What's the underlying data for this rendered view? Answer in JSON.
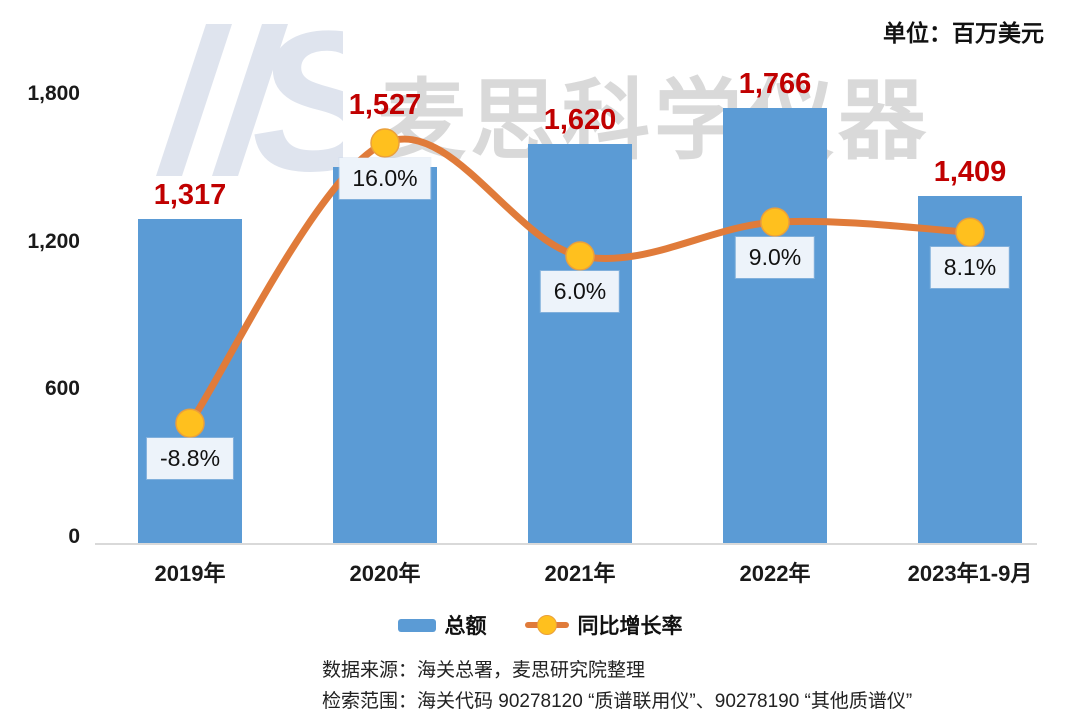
{
  "header": {
    "unit": "单位：百万美元"
  },
  "watermark": {
    "logo": "MS",
    "text": "麦思科学仪器"
  },
  "chart_data": {
    "type": "bar",
    "categories": [
      "2019年",
      "2020年",
      "2021年",
      "2022年",
      "2023年1-9月"
    ],
    "series": [
      {
        "name": "总额",
        "type": "bar",
        "values": [
          1317,
          1527,
          1620,
          1766,
          1409
        ],
        "labels": [
          "1,317",
          "1,527",
          "1,620",
          "1,766",
          "1,409"
        ],
        "color": "#5b9bd5"
      },
      {
        "name": "同比增长率",
        "type": "line",
        "values": [
          -8.8,
          16.0,
          6.0,
          9.0,
          8.1
        ],
        "labels": [
          "-8.8%",
          "16.0%",
          "6.0%",
          "9.0%",
          "8.1%"
        ],
        "line_color": "#e07b3a",
        "marker_color": "#ffc01e"
      }
    ],
    "title": "",
    "xlabel": "",
    "ylabel": "",
    "ylim": [
      0,
      1800
    ],
    "y_axis_ticks": [
      "0",
      "600",
      "1,200",
      "1,800"
    ],
    "y_axis_values": [
      0,
      600,
      1200,
      1800
    ],
    "grid": false,
    "legend_position": "bottom"
  },
  "footer": {
    "line1": "数据来源：海关总署，麦思研究院整理",
    "line2": "检索范围：海关代码 90278120 “质谱联用仪”、90278190 “其他质谱仪”"
  }
}
